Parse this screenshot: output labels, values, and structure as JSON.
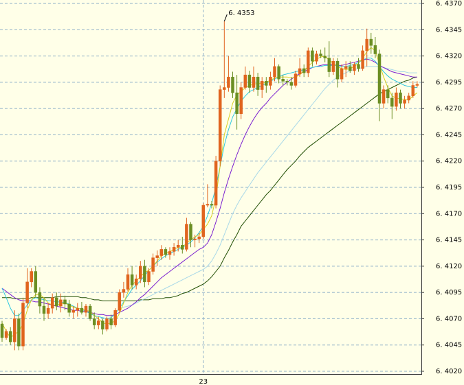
{
  "chart_data": {
    "type": "candlestick",
    "categories": [
      null,
      null,
      null,
      null,
      null,
      null,
      null,
      null,
      null,
      null,
      null,
      null,
      null,
      null,
      null,
      null,
      null,
      null,
      null,
      null,
      null,
      null,
      null,
      null,
      null,
      null,
      null,
      null,
      null,
      null,
      null,
      null,
      null,
      null,
      null,
      null,
      null,
      null,
      null,
      null,
      null,
      null,
      null,
      null,
      null,
      null,
      null,
      null,
      "23",
      null,
      null,
      null,
      null,
      null,
      null,
      null,
      null,
      null,
      null,
      null,
      null,
      null,
      null,
      null,
      null,
      null,
      null,
      null,
      null,
      null,
      null,
      null,
      null,
      null,
      null,
      null,
      null,
      null,
      null,
      null,
      null,
      null,
      null,
      null,
      null,
      null,
      null,
      null,
      null,
      null,
      null,
      null,
      null,
      null,
      null,
      null,
      null,
      null,
      null,
      null
    ],
    "candles": [
      [
        6.4065,
        6.4068,
        6.4048,
        6.4052
      ],
      [
        6.4052,
        6.406,
        6.405,
        6.4058
      ],
      [
        6.4058,
        6.4062,
        6.4045,
        6.4048
      ],
      [
        6.4048,
        6.4078,
        6.404,
        6.407
      ],
      [
        6.407,
        6.4075,
        6.404,
        6.4044
      ],
      [
        6.4044,
        6.409,
        6.404,
        6.4085
      ],
      [
        6.4085,
        6.4118,
        6.408,
        6.4105
      ],
      [
        6.4105,
        6.4118,
        6.41,
        6.4115
      ],
      [
        6.4115,
        6.412,
        6.409,
        6.4095
      ],
      [
        6.4095,
        6.41,
        6.4075,
        6.4082
      ],
      [
        6.4082,
        6.409,
        6.4068,
        6.4075
      ],
      [
        6.4075,
        6.4085,
        6.407,
        6.408
      ],
      [
        6.408,
        6.4094,
        6.4075,
        6.409
      ],
      [
        6.409,
        6.4095,
        6.4078,
        6.4082
      ],
      [
        6.4082,
        6.4094,
        6.4076,
        6.4088
      ],
      [
        6.4088,
        6.4092,
        6.4078,
        6.4084
      ],
      [
        6.4084,
        6.4088,
        6.4072,
        6.4076
      ],
      [
        6.4076,
        6.4082,
        6.407,
        6.4078
      ],
      [
        6.4078,
        6.4085,
        6.4072,
        6.408
      ],
      [
        6.408,
        6.4086,
        6.4074,
        6.4076
      ],
      [
        6.4076,
        6.4084,
        6.4072,
        6.4082
      ],
      [
        6.4082,
        6.4084,
        6.4068,
        6.407
      ],
      [
        6.407,
        6.4076,
        6.406,
        6.4064
      ],
      [
        6.4064,
        6.4072,
        6.406,
        6.4068
      ],
      [
        6.4068,
        6.407,
        6.4055,
        6.406
      ],
      [
        6.406,
        6.4072,
        6.4058,
        6.407
      ],
      [
        6.407,
        6.4074,
        6.406,
        6.4064
      ],
      [
        6.4064,
        6.408,
        6.4062,
        6.4078
      ],
      [
        6.4078,
        6.4098,
        6.4076,
        6.4095
      ],
      [
        6.4095,
        6.4105,
        6.409,
        6.4098
      ],
      [
        6.4098,
        6.4118,
        6.4096,
        6.4112
      ],
      [
        6.4112,
        6.412,
        6.4098,
        6.4102
      ],
      [
        6.4102,
        6.4112,
        6.4098,
        6.4108
      ],
      [
        6.4108,
        6.4125,
        6.4104,
        6.412
      ],
      [
        6.412,
        6.4126,
        6.41,
        6.4105
      ],
      [
        6.4105,
        6.4118,
        6.4102,
        6.4115
      ],
      [
        6.4115,
        6.4132,
        6.4112,
        6.4128
      ],
      [
        6.4128,
        6.4135,
        6.412,
        6.413
      ],
      [
        6.413,
        6.414,
        6.4126,
        6.4136
      ],
      [
        6.4136,
        6.4138,
        6.4128,
        6.4131
      ],
      [
        6.4131,
        6.4138,
        6.4126,
        6.4134
      ],
      [
        6.4134,
        6.4142,
        6.413,
        6.4138
      ],
      [
        6.4138,
        6.4145,
        6.4134,
        6.414
      ],
      [
        6.414,
        6.4148,
        6.4132,
        6.4136
      ],
      [
        6.4136,
        6.4166,
        6.4134,
        6.416
      ],
      [
        6.416,
        6.4162,
        6.4138,
        6.4145
      ],
      [
        6.4145,
        6.415,
        6.4138,
        6.4146
      ],
      [
        6.4146,
        6.4152,
        6.4142,
        6.4148
      ],
      [
        6.4148,
        6.418,
        6.4146,
        6.4178
      ],
      [
        6.4178,
        6.4198,
        6.4176,
        6.4179
      ],
      [
        6.4179,
        6.4182,
        6.4175,
        6.4178
      ],
      [
        6.4178,
        6.4225,
        6.4175,
        6.422
      ],
      [
        6.422,
        6.4292,
        6.4215,
        6.4288
      ],
      [
        6.4288,
        6.4353,
        6.428,
        6.429
      ],
      [
        6.429,
        6.432,
        6.4286,
        6.43
      ],
      [
        6.43,
        6.4305,
        6.428,
        6.4285
      ],
      [
        6.4285,
        6.4302,
        6.425,
        6.4265
      ],
      [
        6.4265,
        6.4295,
        6.426,
        6.429
      ],
      [
        6.429,
        6.431,
        6.4288,
        6.4302
      ],
      [
        6.4302,
        6.4306,
        6.4285,
        6.429
      ],
      [
        6.429,
        6.431,
        6.4286,
        6.43
      ],
      [
        6.43,
        6.4304,
        6.4282,
        6.4288
      ],
      [
        6.4288,
        6.43,
        6.428,
        6.4296
      ],
      [
        6.4296,
        6.43,
        6.4285,
        6.4292
      ],
      [
        6.4292,
        6.4305,
        6.4288,
        6.43
      ],
      [
        6.43,
        6.4318,
        6.4296,
        6.431
      ],
      [
        6.431,
        6.4312,
        6.4294,
        6.4298
      ],
      [
        6.4298,
        6.4302,
        6.4292,
        6.4296
      ],
      [
        6.4296,
        6.4298,
        6.4292,
        6.4295
      ],
      [
        6.4295,
        6.43,
        6.4288,
        6.4292
      ],
      [
        6.4292,
        6.4306,
        6.429,
        6.4303
      ],
      [
        6.4303,
        6.4318,
        6.43,
        6.4308
      ],
      [
        6.4308,
        6.4312,
        6.43,
        6.4304
      ],
      [
        6.4304,
        6.4328,
        6.43,
        6.4325
      ],
      [
        6.4325,
        6.4328,
        6.431,
        6.4315
      ],
      [
        6.4315,
        6.4325,
        6.4312,
        6.4322
      ],
      [
        6.4322,
        6.4326,
        6.4318,
        6.432
      ],
      [
        6.432,
        6.4328,
        6.4314,
        6.4318
      ],
      [
        6.4318,
        6.4334,
        6.43,
        6.4305
      ],
      [
        6.4305,
        6.4318,
        6.4302,
        6.4315
      ],
      [
        6.4315,
        6.4318,
        6.429,
        6.4298
      ],
      [
        6.4298,
        6.4312,
        6.4295,
        6.4308
      ],
      [
        6.4308,
        6.4315,
        6.43,
        6.431
      ],
      [
        6.431,
        6.4315,
        6.4304,
        6.4306
      ],
      [
        6.4306,
        6.4314,
        6.4302,
        6.4312
      ],
      [
        6.4312,
        6.4318,
        6.4305,
        6.4308
      ],
      [
        6.4308,
        6.433,
        6.4306,
        6.4325
      ],
      [
        6.4325,
        6.4346,
        6.431,
        6.4336
      ],
      [
        6.4336,
        6.4342,
        6.4322,
        6.433
      ],
      [
        6.433,
        6.4338,
        6.4318,
        6.4322
      ],
      [
        6.4322,
        6.4326,
        6.4258,
        6.4275
      ],
      [
        6.4275,
        6.4292,
        6.427,
        6.4288
      ],
      [
        6.4288,
        6.4292,
        6.4275,
        6.428
      ],
      [
        6.428,
        6.4285,
        6.426,
        6.4272
      ],
      [
        6.4272,
        6.429,
        6.4268,
        6.4285
      ],
      [
        6.4285,
        6.4288,
        6.427,
        6.4275
      ],
      [
        6.4275,
        6.4282,
        6.427,
        6.4278
      ],
      [
        6.4278,
        6.4285,
        6.4275,
        6.4282
      ],
      [
        6.4282,
        6.4296,
        6.428,
        6.4292
      ],
      [
        6.4292,
        6.4296,
        6.429,
        6.4293
      ]
    ],
    "up_color": "#e0641e",
    "down_color": "#6b8e23",
    "lines": [
      {
        "color": "#1f4d00",
        "values": [
          6.409,
          6.409,
          6.409,
          6.4089,
          6.4089,
          6.4089,
          6.4089,
          6.409,
          6.409,
          6.409,
          6.409,
          6.409,
          6.409,
          6.4091,
          6.4091,
          6.4091,
          6.4091,
          6.4091,
          6.4091,
          6.409,
          6.409,
          6.4089,
          6.4088,
          6.4088,
          6.4087,
          6.4087,
          6.4087,
          6.4087,
          6.4087,
          6.4087,
          6.4087,
          6.4087,
          6.4087,
          6.4088,
          6.4088,
          6.4088,
          6.4089,
          6.4089,
          6.4089,
          6.409,
          6.409,
          6.4091,
          6.4092,
          6.4094,
          6.4095,
          6.4097,
          6.4099,
          6.4101,
          6.4103,
          6.4106,
          6.411,
          6.4115,
          6.412,
          6.4128,
          6.4135,
          6.4143,
          6.415,
          6.4158,
          6.4163,
          6.4168,
          6.4173,
          6.4178,
          6.4183,
          6.4188,
          6.4192,
          6.4197,
          6.4202,
          6.4207,
          6.4212,
          6.4216,
          6.422,
          6.4225,
          6.4229,
          6.4233,
          6.4236,
          6.4239,
          6.4242,
          6.4245,
          6.4248,
          6.4251,
          6.4254,
          6.4257,
          6.426,
          6.4263,
          6.4266,
          6.4269,
          6.4272,
          6.4275,
          6.4278,
          6.4281,
          6.4284,
          6.4286,
          6.4288,
          6.429,
          6.4292,
          6.4294,
          6.4296,
          6.4297,
          6.4299,
          6.43
        ]
      },
      {
        "color": "#a8d8e8",
        "values": [
          null,
          null,
          null,
          null,
          null,
          null,
          null,
          null,
          null,
          null,
          null,
          null,
          null,
          null,
          null,
          null,
          null,
          null,
          null,
          null,
          null,
          null,
          null,
          null,
          null,
          null,
          null,
          null,
          6.408,
          6.4081,
          6.4082,
          6.4083,
          6.4085,
          6.4087,
          6.4089,
          6.4091,
          6.4093,
          6.4095,
          6.4097,
          6.4099,
          6.4101,
          6.4103,
          6.4105,
          6.4107,
          6.4109,
          6.4111,
          6.4113,
          6.4115,
          6.4117,
          6.412,
          6.4125,
          6.4132,
          6.414,
          6.415,
          6.416,
          6.417,
          6.4178,
          6.4185,
          6.4191,
          6.4197,
          6.4203,
          6.4209,
          6.4214,
          6.4219,
          6.4224,
          6.4229,
          6.4234,
          6.4239,
          6.4244,
          6.4249,
          6.4254,
          6.4259,
          6.4264,
          6.4269,
          6.4274,
          6.4279,
          6.4284,
          6.4289,
          6.4293,
          6.4297,
          6.43,
          6.4302,
          6.4304,
          6.4306,
          6.4307,
          6.4308,
          6.4309,
          6.431,
          6.431,
          6.431,
          6.431,
          6.4309,
          6.4308,
          6.4307,
          6.4306,
          6.4305,
          6.4305,
          6.4304,
          6.4304,
          6.4304
        ]
      },
      {
        "color": "#7a1fd0",
        "values": [
          6.4099,
          6.4096,
          6.4093,
          6.409,
          6.4088,
          6.4087,
          6.4087,
          6.4087,
          6.4086,
          6.4086,
          6.4085,
          6.4084,
          6.4083,
          6.4082,
          6.4081,
          6.408,
          6.4079,
          6.4078,
          6.4078,
          6.4077,
          6.4077,
          6.4076,
          6.4075,
          6.4074,
          6.4074,
          6.4073,
          6.4073,
          6.4074,
          6.4076,
          6.4078,
          6.408,
          6.4083,
          6.4086,
          6.409,
          6.4093,
          6.4097,
          6.4101,
          6.4105,
          6.4109,
          6.4112,
          6.4115,
          6.4118,
          6.4121,
          6.4124,
          6.4127,
          6.413,
          6.4133,
          6.4136,
          6.4138,
          6.4142,
          6.415,
          6.4162,
          6.4175,
          6.419,
          6.4203,
          6.4215,
          6.4226,
          6.4236,
          6.4245,
          6.4253,
          6.426,
          6.4266,
          6.4271,
          6.4275,
          6.428,
          6.4284,
          6.4288,
          6.4292,
          6.4295,
          6.4298,
          6.4301,
          6.4303,
          6.4305,
          6.4307,
          6.4309,
          6.431,
          6.4311,
          6.4312,
          6.4312,
          6.4312,
          6.4311,
          6.4311,
          6.4312,
          6.4313,
          6.4314,
          6.4315,
          6.4316,
          6.4317,
          6.4316,
          6.4314,
          6.4311,
          6.4309,
          6.4307,
          6.4305,
          6.4304,
          6.4303,
          6.4302,
          6.4301,
          6.43,
          6.43
        ]
      },
      {
        "color": "#2ec8e0",
        "values": [
          6.4099,
          6.409,
          6.408,
          6.4073,
          6.4073,
          6.4078,
          6.4083,
          6.4088,
          6.409,
          6.4089,
          6.4088,
          6.4087,
          6.4087,
          6.4086,
          6.4086,
          6.4085,
          6.4084,
          6.4082,
          6.408,
          6.4079,
          6.4077,
          6.4075,
          6.4073,
          6.4072,
          6.4071,
          6.407,
          6.4071,
          6.4075,
          6.408,
          6.4086,
          6.4092,
          6.4098,
          6.4102,
          6.4106,
          6.4111,
          6.4116,
          6.412,
          6.4124,
          6.4127,
          6.413,
          6.4132,
          6.4134,
          6.4136,
          6.4138,
          6.414,
          6.4143,
          6.4147,
          6.4152,
          6.4158,
          6.4168,
          6.418,
          6.4195,
          6.4215,
          6.4235,
          6.425,
          6.4262,
          6.427,
          6.4277,
          6.4282,
          6.4286,
          6.4288,
          6.429,
          6.4292,
          6.4294,
          6.4296,
          6.4298,
          6.43,
          6.4302,
          6.4303,
          6.4304,
          6.4305,
          6.4306,
          6.4307,
          6.4308,
          6.4309,
          6.431,
          6.431,
          6.4311,
          6.4311,
          6.4311,
          6.4311,
          6.431,
          6.431,
          6.4311,
          6.4312,
          6.4314,
          6.4316,
          6.4318,
          6.4318,
          6.4315,
          6.431,
          6.4305,
          6.4301,
          6.4298,
          6.4296,
          6.4294,
          6.4292,
          6.4291,
          6.429,
          6.429
        ]
      },
      {
        "color": "#d8d020",
        "values": [
          6.4066,
          6.4058,
          6.4052,
          6.4055,
          6.4058,
          6.4065,
          6.4078,
          6.4088,
          6.4093,
          6.4093,
          6.409,
          6.4085,
          6.4083,
          6.4083,
          6.4084,
          6.4085,
          6.4083,
          6.4081,
          6.408,
          6.4079,
          6.4078,
          6.4077,
          6.4073,
          6.407,
          6.4066,
          6.4065,
          6.4066,
          6.4068,
          6.4075,
          6.4085,
          6.4095,
          6.4102,
          6.4106,
          6.411,
          6.4114,
          6.4116,
          6.412,
          6.4125,
          6.413,
          6.4132,
          6.4134,
          6.4136,
          6.4138,
          6.4138,
          6.4142,
          6.4145,
          6.4148,
          6.415,
          6.4155,
          6.416,
          6.4168,
          6.4185,
          6.4215,
          6.4245,
          6.426,
          6.4275,
          6.4283,
          6.4286,
          6.429,
          6.4292,
          6.4293,
          6.4294,
          6.4294,
          6.4295,
          6.4297,
          6.4299,
          6.43,
          6.43,
          6.43,
          6.4299,
          6.43,
          6.4302,
          6.4306,
          6.431,
          6.4314,
          6.4317,
          6.4319,
          6.432,
          6.4316,
          6.4313,
          6.431,
          6.4308,
          6.4307,
          6.4308,
          6.431,
          6.4313,
          6.4318,
          6.4324,
          6.4328,
          6.4325,
          6.4312,
          6.43,
          6.429,
          6.4282,
          6.428,
          6.4279,
          6.4279,
          6.4278,
          6.4282,
          6.4285
        ]
      }
    ],
    "annotation": "6. 4353",
    "ylim": [
      6.402,
      6.437
    ],
    "yticks": [
      {
        "value": 6.402,
        "label": "6. 4020"
      },
      {
        "value": 6.4045,
        "label": "6. 4045"
      },
      {
        "value": 6.407,
        "label": "6. 4070"
      },
      {
        "value": 6.4095,
        "label": "6. 4095"
      },
      {
        "value": 6.412,
        "label": "6. 4120"
      },
      {
        "value": 6.4145,
        "label": "6. 4145"
      },
      {
        "value": 6.417,
        "label": "6. 4170"
      },
      {
        "value": 6.4195,
        "label": "6. 4195"
      },
      {
        "value": 6.422,
        "label": "6. 4220"
      },
      {
        "value": 6.4245,
        "label": "6. 4245"
      },
      {
        "value": 6.427,
        "label": "6. 4270"
      },
      {
        "value": 6.4295,
        "label": "6. 4295"
      },
      {
        "value": 6.432,
        "label": "6. 4320"
      },
      {
        "value": 6.4345,
        "label": "6. 4345"
      },
      {
        "value": 6.437,
        "label": "6. 4370"
      }
    ],
    "grid": true,
    "grid_color": "#8fb0c8"
  }
}
